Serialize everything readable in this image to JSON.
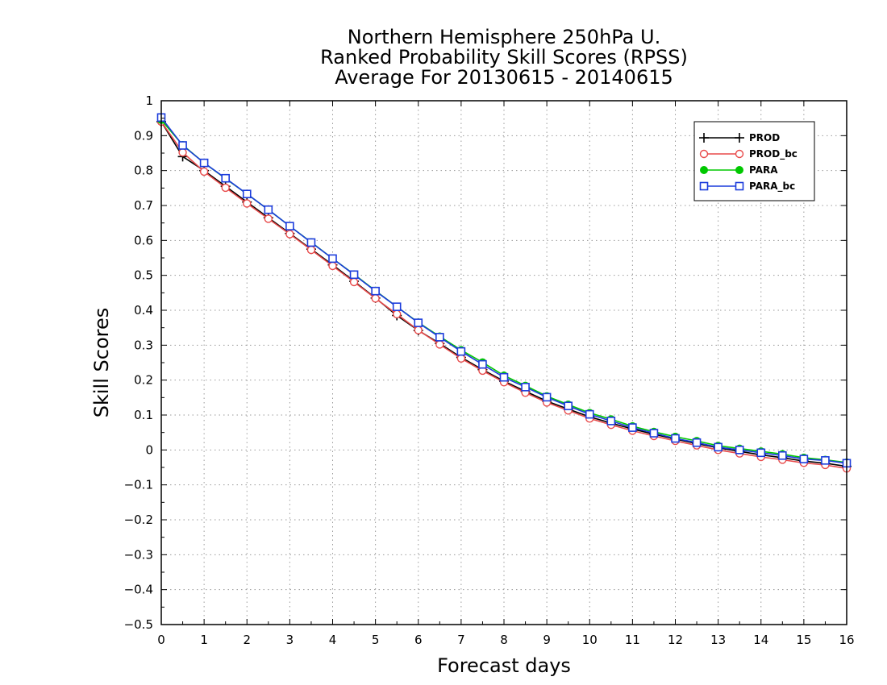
{
  "chart_data": {
    "type": "line",
    "title": [
      "Northern Hemisphere 250hPa U.",
      "Ranked Probability Skill Scores (RPSS)",
      "Average For 20130615 - 20140615"
    ],
    "xlabel": "Forecast days",
    "ylabel": "Skill Scores",
    "xlim": [
      0,
      16
    ],
    "ylim": [
      -0.5,
      1
    ],
    "xticks": [
      "0",
      "1",
      "2",
      "3",
      "4",
      "5",
      "6",
      "7",
      "8",
      "9",
      "10",
      "11",
      "12",
      "13",
      "14",
      "15",
      "16"
    ],
    "yticks": [
      "1",
      "0.9",
      "0.8",
      "0.7",
      "0.6",
      "0.5",
      "0.4",
      "0.3",
      "0.2",
      "0.1",
      "0",
      "−0.1",
      "−0.2",
      "−0.3",
      "−0.4",
      "−0.5"
    ],
    "grid": true,
    "legend_position": "top-right",
    "x": [
      0,
      0.5,
      1,
      1.5,
      2,
      2.5,
      3,
      3.5,
      4,
      4.5,
      5,
      5.5,
      6,
      6.5,
      7,
      7.5,
      8,
      8.5,
      9,
      9.5,
      10,
      10.5,
      11,
      11.5,
      12,
      12.5,
      13,
      13.5,
      14,
      14.5,
      15,
      15.5,
      16
    ],
    "series": [
      {
        "name": "PROD",
        "color": "#000000",
        "marker": "plus",
        "values": [
          0.94,
          0.84,
          0.8,
          0.755,
          0.71,
          0.665,
          0.62,
          0.575,
          0.53,
          0.483,
          0.435,
          0.385,
          0.342,
          0.305,
          0.265,
          0.23,
          0.197,
          0.168,
          0.14,
          0.117,
          0.095,
          0.077,
          0.06,
          0.045,
          0.031,
          0.018,
          0.006,
          -0.004,
          -0.014,
          -0.022,
          -0.032,
          -0.038,
          -0.047
        ]
      },
      {
        "name": "PROD_bc",
        "color": "#e84a4a",
        "marker": "circle",
        "values": [
          0.94,
          0.852,
          0.797,
          0.751,
          0.706,
          0.662,
          0.618,
          0.573,
          0.527,
          0.481,
          0.434,
          0.389,
          0.343,
          0.302,
          0.262,
          0.227,
          0.194,
          0.164,
          0.136,
          0.113,
          0.09,
          0.072,
          0.055,
          0.04,
          0.026,
          0.013,
          0.0,
          -0.01,
          -0.02,
          -0.028,
          -0.037,
          -0.043,
          -0.053
        ]
      },
      {
        "name": "PARA",
        "color": "#00c800",
        "marker": "dot",
        "values": [
          0.945,
          0.873,
          0.822,
          0.777,
          0.733,
          0.688,
          0.641,
          0.595,
          0.548,
          0.503,
          0.456,
          0.41,
          0.365,
          0.325,
          0.286,
          0.251,
          0.213,
          0.184,
          0.154,
          0.13,
          0.106,
          0.088,
          0.068,
          0.052,
          0.038,
          0.026,
          0.012,
          0.004,
          -0.004,
          -0.012,
          -0.022,
          -0.028,
          -0.036
        ]
      },
      {
        "name": "PARA_bc",
        "color": "#1c3cdc",
        "marker": "square",
        "values": [
          0.952,
          0.872,
          0.822,
          0.778,
          0.733,
          0.688,
          0.641,
          0.594,
          0.548,
          0.502,
          0.455,
          0.41,
          0.364,
          0.323,
          0.282,
          0.245,
          0.208,
          0.18,
          0.151,
          0.126,
          0.102,
          0.083,
          0.064,
          0.048,
          0.033,
          0.021,
          0.008,
          0.0,
          -0.008,
          -0.016,
          -0.026,
          -0.03,
          -0.038
        ]
      }
    ]
  }
}
